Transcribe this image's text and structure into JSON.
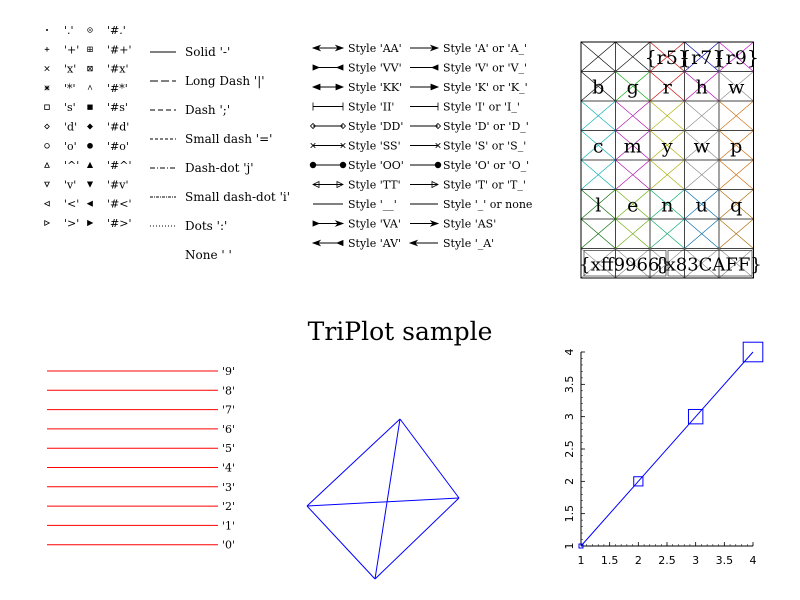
{
  "title": "TriPlot sample",
  "marker_panel": {
    "rows": [
      {
        "open_label": "'.'",
        "filled_label": "'#.'"
      },
      {
        "open_label": "'+'",
        "filled_label": "'#+'"
      },
      {
        "open_label": "'x'",
        "filled_label": "'#x'"
      },
      {
        "open_label": "'*'",
        "filled_label": "'#*'"
      },
      {
        "open_label": "'s'",
        "filled_label": "'#s'"
      },
      {
        "open_label": "'d'",
        "filled_label": "'#d'"
      },
      {
        "open_label": "'o'",
        "filled_label": "'#o'"
      },
      {
        "open_label": "'^'",
        "filled_label": "'#^'"
      },
      {
        "open_label": "'v'",
        "filled_label": "'#v'"
      },
      {
        "open_label": "'<'",
        "filled_label": "'#<'"
      },
      {
        "open_label": "'>'",
        "filled_label": "'#>'"
      }
    ],
    "open_markers": [
      "dot",
      "plus",
      "cross",
      "star",
      "square",
      "diamond",
      "circle",
      "triangle-up",
      "triangle-down",
      "triangle-left",
      "triangle-right"
    ]
  },
  "dash_panel": {
    "items": [
      {
        "label": "Solid '-'",
        "dash": "none"
      },
      {
        "label": "Long Dash '|'",
        "dash": "8 3"
      },
      {
        "label": "Dash ';'",
        "dash": "5 3"
      },
      {
        "label": "Small dash '='",
        "dash": "3 2"
      },
      {
        "label": "Dash-dot 'j'",
        "dash": "5 2 1 2"
      },
      {
        "label": "Small dash-dot 'i'",
        "dash": "3 1 1 1"
      },
      {
        "label": "Dots ':'",
        "dash": "1 2"
      },
      {
        "label": "None ' '",
        "dash": "hidden"
      }
    ]
  },
  "arrow_panel": {
    "left_labels": [
      "Style 'AA'",
      "Style 'VV'",
      "Style 'KK'",
      "Style 'II'",
      "Style 'DD'",
      "Style 'SS'",
      "Style 'OO'",
      "Style 'TT'",
      "Style '__'",
      "Style 'VA'",
      "Style 'AV'"
    ],
    "right_labels": [
      "Style 'A' or 'A_'",
      "Style 'V' or 'V_'",
      "Style 'K' or 'K_'",
      "Style 'I' or 'I_'",
      "Style 'D' or 'D_'",
      "Style 'S' or 'S_'",
      "Style 'O' or 'O_'",
      "Style 'T' or 'T_'",
      "Style '_' or none",
      "Style 'AS'",
      "Style '_A'"
    ]
  },
  "color_grid": {
    "top_labels": [
      "{r5}",
      "{r7}",
      "{r9}"
    ],
    "row_b": [
      "b",
      "g",
      "r",
      "h",
      "w"
    ],
    "row_c": [
      "c",
      "m",
      "y",
      "w",
      "p"
    ],
    "row_l": [
      "l",
      "e",
      "n",
      "u",
      "q"
    ],
    "bottom_labels": [
      "{xff9966}",
      "{x83CAFF}"
    ]
  },
  "line_list": {
    "labels": [
      "'9'",
      "'8'",
      "'7'",
      "'6'",
      "'5'",
      "'4'",
      "'3'",
      "'2'",
      "'1'",
      "'0'"
    ],
    "color": "#ff0000"
  },
  "colors": {
    "accent": "#0000ff",
    "line": "#ff0000"
  },
  "chart_data": [
    {
      "type": "line",
      "title": "",
      "x": [
        1,
        2,
        3,
        4
      ],
      "y": [
        1,
        2,
        3,
        4
      ],
      "xlim": [
        1,
        4
      ],
      "ylim": [
        1,
        4
      ],
      "xticks": [
        "1",
        "1.5",
        "2",
        "2.5",
        "3",
        "3.5",
        "4"
      ],
      "yticks": [
        "1",
        "1.5",
        "2",
        "2.5",
        "3",
        "3.5",
        "4"
      ],
      "marker": "square",
      "color": "#0000ff"
    },
    {
      "type": "line",
      "title": "",
      "description_points": [
        [
          1,
          0
        ],
        [
          0,
          1
        ],
        [
          -1,
          0
        ],
        [
          0,
          -1
        ]
      ]
    }
  ]
}
